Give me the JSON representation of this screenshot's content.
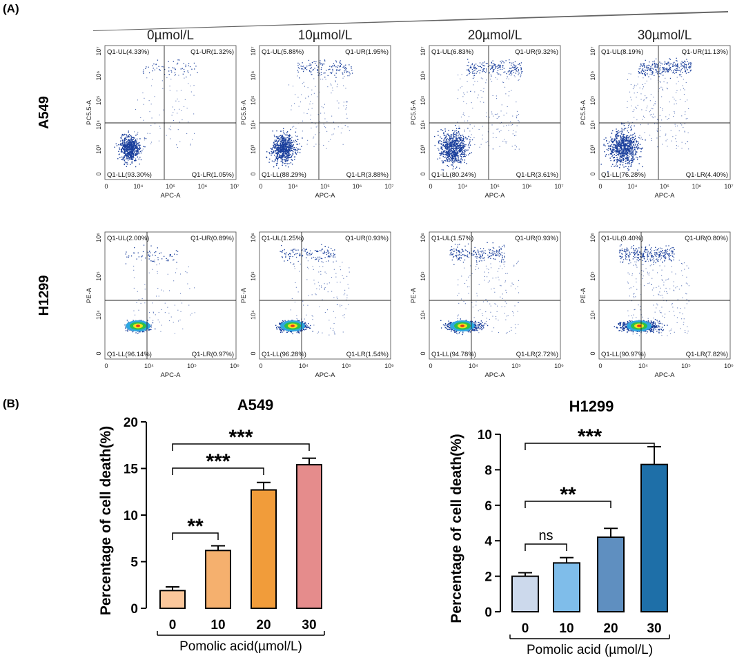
{
  "panel_a": {
    "label": "(A)",
    "concentrations": [
      "0µmol/L",
      "10µmol/L",
      "20µmol/L",
      "30µmol/L"
    ],
    "rows": [
      {
        "cell_line": "A549",
        "x_label": "APC-A",
        "y_label": "PC5.5-A",
        "x_ticks": [
          "0",
          "10⁴",
          "10⁵",
          "10⁶",
          "10⁷"
        ],
        "y_ticks": [
          "0",
          "10³",
          "10⁴",
          "10⁵",
          "10⁶",
          "10⁷"
        ],
        "plots": [
          {
            "ul": "Q1-UL(4.33%)",
            "ur": "Q1-UR(1.32%)",
            "ll": "Q1-LL(93.30%)",
            "lr": "Q1-LR(1.05%)"
          },
          {
            "ul": "Q1-UL(5.88%)",
            "ur": "Q1-UR(1.95%)",
            "ll": "Q1-LL(88.29%)",
            "lr": "Q1-LR(3.88%)"
          },
          {
            "ul": "Q1-UL(6.83%)",
            "ur": "Q1-UR(9.32%)",
            "ll": "Q1-LL(80.24%)",
            "lr": "Q1-LR(3.61%)"
          },
          {
            "ul": "Q1-UL(8.19%)",
            "ur": "Q1-UR(11.13%)",
            "ll": "Q1-LL(76.28%)",
            "lr": "Q1-LR(4.40%)"
          }
        ]
      },
      {
        "cell_line": "H1299",
        "x_label": "APC-A",
        "y_label": "PE-A",
        "x_ticks": [
          "0",
          "10⁴",
          "10⁵",
          "10⁶"
        ],
        "y_ticks": [
          "0",
          "10⁴",
          "10⁵",
          "10⁶"
        ],
        "plots": [
          {
            "ul": "Q1-UL(2.00%)",
            "ur": "Q1-UR(0.89%)",
            "ll": "Q1-LL(96.14%)",
            "lr": "Q1-LR(0.97%)"
          },
          {
            "ul": "Q1-UL(1.25%)",
            "ur": "Q1-UR(0.93%)",
            "ll": "Q1-LL(96.28%)",
            "lr": "Q1-LR(1.54%)"
          },
          {
            "ul": "Q1-UL(1.57%)",
            "ur": "Q1-UR(0.93%)",
            "ll": "Q1-LL(94.78%)",
            "lr": "Q1-LR(2.72%)"
          },
          {
            "ul": "Q1-UL(0.40%)",
            "ur": "Q1-UR(0.80%)",
            "ll": "Q1-LL(90.97%)",
            "lr": "Q1-LR(7.82%)"
          }
        ]
      }
    ]
  },
  "panel_b": {
    "label": "(B)"
  },
  "colors": {
    "a549": [
      "#FBC79B",
      "#F5B06E",
      "#F19C3A",
      "#E58C8C"
    ],
    "h1299": [
      "#CCD9EC",
      "#7FBDEA",
      "#5F8FC0",
      "#1E6FA8"
    ],
    "dot": "#1A3F9C"
  },
  "chart_data": [
    {
      "type": "bar",
      "title": "A549",
      "categories": [
        "0",
        "10",
        "20",
        "30"
      ],
      "values": [
        1.9,
        6.2,
        12.7,
        15.4
      ],
      "errors": [
        0.4,
        0.5,
        0.8,
        0.7
      ],
      "xlabel": "Pomolic acid(µmol/L)",
      "ylabel": "Percentage of cell death(%)",
      "ylim": [
        0,
        20
      ],
      "yticks": [
        "0",
        "5",
        "10",
        "15",
        "20"
      ],
      "annotations": [
        {
          "from": "0",
          "to": "10",
          "label": "**"
        },
        {
          "from": "0",
          "to": "20",
          "label": "***"
        },
        {
          "from": "0",
          "to": "30",
          "label": "***"
        }
      ]
    },
    {
      "type": "bar",
      "title": "H1299",
      "categories": [
        "0",
        "10",
        "20",
        "30"
      ],
      "values": [
        2.0,
        2.75,
        4.2,
        8.3
      ],
      "errors": [
        0.2,
        0.3,
        0.5,
        1.0
      ],
      "xlabel": "Pomolic acid (µmol/L)",
      "ylabel": "Percentage of cell death(%)",
      "ylim": [
        0,
        10
      ],
      "yticks": [
        "0",
        "2",
        "4",
        "6",
        "8",
        "10"
      ],
      "annotations": [
        {
          "from": "0",
          "to": "10",
          "label": "ns"
        },
        {
          "from": "0",
          "to": "20",
          "label": "**"
        },
        {
          "from": "0",
          "to": "30",
          "label": "***"
        }
      ]
    }
  ]
}
